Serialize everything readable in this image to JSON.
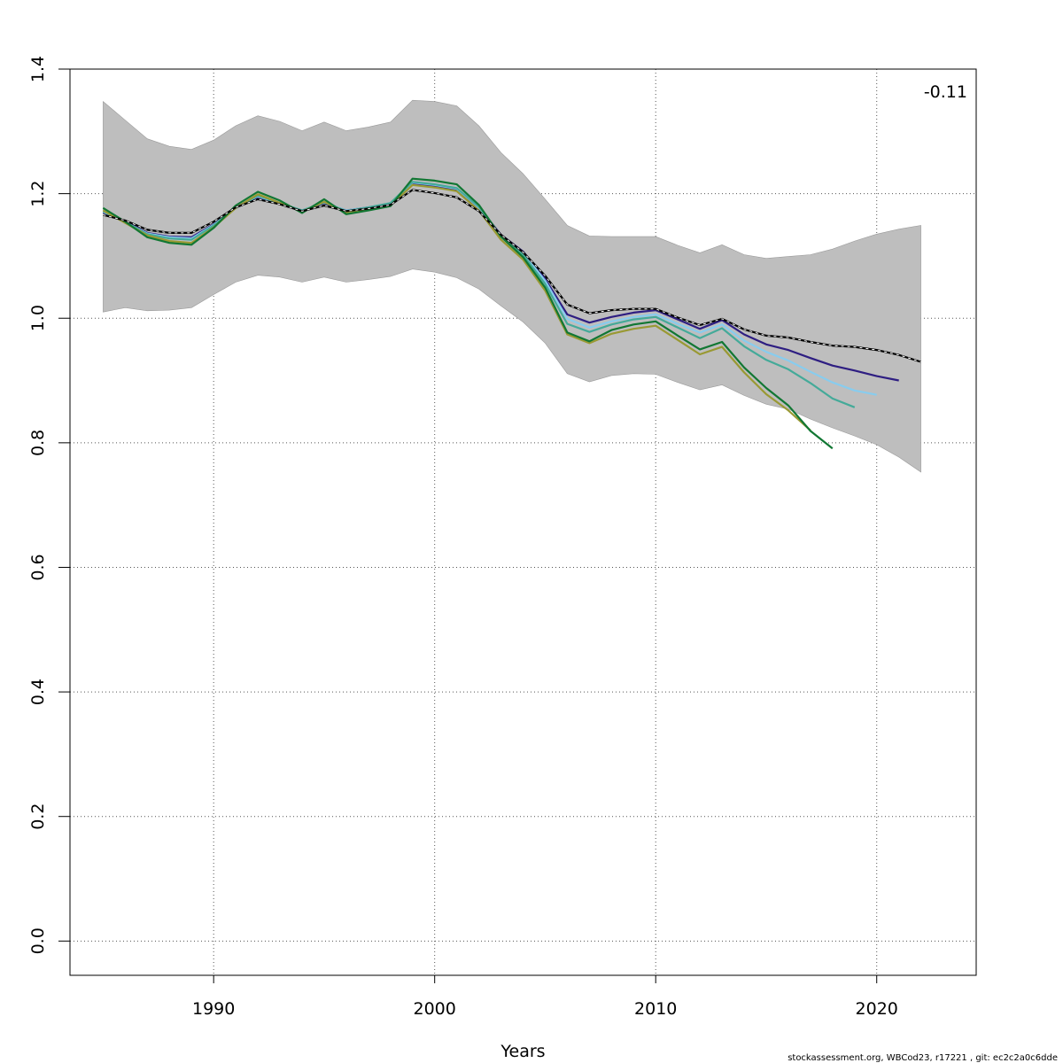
{
  "chart_data": {
    "type": "line",
    "title": "",
    "xlabel": "Years",
    "ylabel": "",
    "xlim": [
      1983.5,
      2024.5
    ],
    "ylim": [
      -0.055,
      1.4
    ],
    "x_ticks": [
      1990,
      2000,
      2010,
      2020
    ],
    "x_tick_labels": [
      "1990",
      "2000",
      "2010",
      "2020"
    ],
    "y_ticks": [
      0.0,
      0.2,
      0.4,
      0.6,
      0.8,
      1.0,
      1.2,
      1.4
    ],
    "y_tick_labels": [
      "0.0",
      "0.2",
      "0.4",
      "0.6",
      "0.8",
      "1.0",
      "1.2",
      "1.4"
    ],
    "grid": true,
    "annotation": "-0.11",
    "footer": "stockassessment.org, WBCod23, r17221 , git: ec2c2a0c6dde",
    "confidence_band": {
      "x": [
        1985,
        1986,
        1987,
        1988,
        1989,
        1990,
        1991,
        1992,
        1993,
        1994,
        1995,
        1996,
        1997,
        1998,
        1999,
        2000,
        2001,
        2002,
        2003,
        2004,
        2005,
        2006,
        2007,
        2008,
        2009,
        2010,
        2011,
        2012,
        2013,
        2014,
        2015,
        2016,
        2017,
        2018,
        2019,
        2020,
        2021,
        2022
      ],
      "upper": [
        1.348,
        1.318,
        1.288,
        1.276,
        1.271,
        1.286,
        1.309,
        1.325,
        1.316,
        1.301,
        1.315,
        1.301,
        1.307,
        1.315,
        1.35,
        1.348,
        1.341,
        1.309,
        1.266,
        1.232,
        1.191,
        1.149,
        1.132,
        1.131,
        1.131,
        1.131,
        1.117,
        1.105,
        1.118,
        1.102,
        1.096,
        1.099,
        1.102,
        1.111,
        1.124,
        1.135,
        1.143,
        1.149
      ],
      "lower": [
        1.01,
        1.017,
        1.012,
        1.013,
        1.017,
        1.038,
        1.058,
        1.069,
        1.066,
        1.058,
        1.066,
        1.058,
        1.062,
        1.067,
        1.079,
        1.074,
        1.065,
        1.047,
        1.02,
        0.994,
        0.96,
        0.911,
        0.898,
        0.908,
        0.911,
        0.91,
        0.897,
        0.885,
        0.893,
        0.876,
        0.862,
        0.854,
        0.838,
        0.824,
        0.811,
        0.797,
        0.777,
        0.753
      ]
    },
    "series": [
      {
        "color": "#000000",
        "dashed": true,
        "x": [
          1985,
          1986,
          1987,
          1988,
          1989,
          1990,
          1991,
          1992,
          1993,
          1994,
          1995,
          1996,
          1997,
          1998,
          1999,
          2000,
          2001,
          2002,
          2003,
          2004,
          2005,
          2006,
          2007,
          2008,
          2009,
          2010,
          2011,
          2012,
          2013,
          2014,
          2015,
          2016,
          2017,
          2018,
          2019,
          2020,
          2021,
          2022
        ],
        "values": [
          1.166,
          1.157,
          1.142,
          1.137,
          1.137,
          1.155,
          1.178,
          1.191,
          1.183,
          1.172,
          1.181,
          1.172,
          1.176,
          1.182,
          1.206,
          1.201,
          1.194,
          1.172,
          1.134,
          1.106,
          1.068,
          1.022,
          1.008,
          1.013,
          1.015,
          1.015,
          1.001,
          0.989,
          0.999,
          0.982,
          0.972,
          0.969,
          0.962,
          0.956,
          0.954,
          0.949,
          0.941,
          0.93
        ]
      },
      {
        "color": "#2e1e82",
        "dashed": false,
        "x": [
          1985,
          1986,
          1987,
          1988,
          1989,
          1990,
          1991,
          1992,
          1993,
          1994,
          1995,
          1996,
          1997,
          1998,
          1999,
          2000,
          2001,
          2002,
          2003,
          2004,
          2005,
          2006,
          2007,
          2008,
          2009,
          2010,
          2011,
          2012,
          2013,
          2014,
          2015,
          2016,
          2017,
          2018,
          2019,
          2020,
          2021
        ],
        "values": [
          1.17,
          1.155,
          1.137,
          1.131,
          1.13,
          1.151,
          1.177,
          1.195,
          1.184,
          1.173,
          1.185,
          1.173,
          1.178,
          1.184,
          1.216,
          1.212,
          1.206,
          1.178,
          1.134,
          1.107,
          1.063,
          1.006,
          0.993,
          1.002,
          1.009,
          1.013,
          0.998,
          0.983,
          0.997,
          0.974,
          0.958,
          0.949,
          0.936,
          0.924,
          0.916,
          0.907,
          0.9
        ]
      },
      {
        "color": "#88ccee",
        "dashed": false,
        "x": [
          1985,
          1986,
          1987,
          1988,
          1989,
          1990,
          1991,
          1992,
          1993,
          1994,
          1995,
          1996,
          1997,
          1998,
          1999,
          2000,
          2001,
          2002,
          2003,
          2004,
          2005,
          2006,
          2007,
          2008,
          2009,
          2010,
          2011,
          2012,
          2013,
          2014,
          2015,
          2016,
          2017,
          2018,
          2019,
          2020
        ],
        "values": [
          1.171,
          1.154,
          1.136,
          1.13,
          1.128,
          1.15,
          1.177,
          1.196,
          1.184,
          1.173,
          1.186,
          1.173,
          1.178,
          1.184,
          1.218,
          1.214,
          1.208,
          1.178,
          1.133,
          1.105,
          1.06,
          0.999,
          0.985,
          0.995,
          1.002,
          1.006,
          0.991,
          0.977,
          0.99,
          0.964,
          0.946,
          0.932,
          0.914,
          0.897,
          0.884,
          0.877
        ]
      },
      {
        "color": "#44aa99",
        "dashed": false,
        "x": [
          1985,
          1986,
          1987,
          1988,
          1989,
          1990,
          1991,
          1992,
          1993,
          1994,
          1995,
          1996,
          1997,
          1998,
          1999,
          2000,
          2001,
          2002,
          2003,
          2004,
          2005,
          2006,
          2007,
          2008,
          2009,
          2010,
          2011,
          2012,
          2013,
          2014,
          2015,
          2016,
          2017,
          2018,
          2019
        ],
        "values": [
          1.172,
          1.154,
          1.135,
          1.128,
          1.126,
          1.149,
          1.177,
          1.197,
          1.185,
          1.173,
          1.186,
          1.172,
          1.178,
          1.185,
          1.219,
          1.215,
          1.209,
          1.179,
          1.131,
          1.102,
          1.055,
          0.991,
          0.978,
          0.99,
          0.998,
          1.002,
          0.985,
          0.968,
          0.984,
          0.955,
          0.933,
          0.918,
          0.896,
          0.871,
          0.857
        ]
      },
      {
        "color": "#999933",
        "dashed": false,
        "x": [
          1985,
          1986,
          1987,
          1988,
          1989,
          1990,
          1991,
          1992,
          1993,
          1994,
          1995,
          1996,
          1997,
          1998,
          1999,
          2000,
          2001,
          2002,
          2003,
          2004,
          2005,
          2006,
          2007,
          2008,
          2009,
          2010,
          2011,
          2012,
          2013,
          2014,
          2015,
          2016,
          2017
        ],
        "values": [
          1.173,
          1.153,
          1.133,
          1.124,
          1.121,
          1.146,
          1.177,
          1.199,
          1.185,
          1.171,
          1.187,
          1.17,
          1.175,
          1.181,
          1.214,
          1.21,
          1.204,
          1.173,
          1.126,
          1.094,
          1.044,
          0.974,
          0.96,
          0.975,
          0.983,
          0.988,
          0.965,
          0.942,
          0.954,
          0.913,
          0.878,
          0.852,
          0.82
        ]
      },
      {
        "color": "#117733",
        "dashed": false,
        "x": [
          1985,
          1986,
          1987,
          1988,
          1989,
          1990,
          1991,
          1992,
          1993,
          1994,
          1995,
          1996,
          1997,
          1998,
          1999,
          2000,
          2001,
          2002,
          2003,
          2004,
          2005,
          2006,
          2007,
          2008,
          2009,
          2010,
          2011,
          2012,
          2013,
          2014,
          2015,
          2016,
          2017,
          2018
        ],
        "values": [
          1.177,
          1.155,
          1.13,
          1.121,
          1.118,
          1.145,
          1.181,
          1.203,
          1.189,
          1.169,
          1.191,
          1.167,
          1.173,
          1.18,
          1.224,
          1.221,
          1.215,
          1.182,
          1.131,
          1.098,
          1.049,
          0.977,
          0.963,
          0.981,
          0.99,
          0.995,
          0.972,
          0.95,
          0.962,
          0.921,
          0.888,
          0.86,
          0.819,
          0.791
        ]
      }
    ]
  }
}
